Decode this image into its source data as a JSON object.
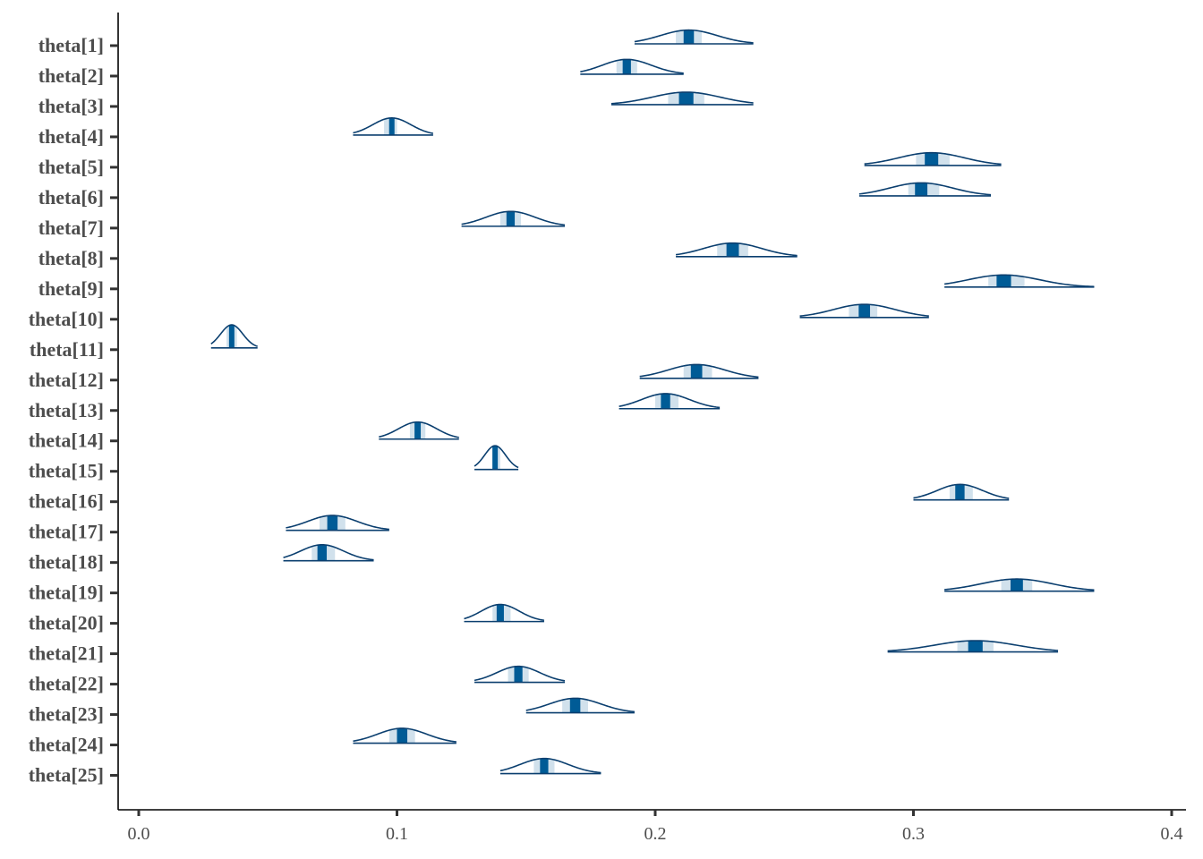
{
  "chart_data": {
    "type": "ridgeline",
    "xlim": [
      -0.008,
      0.405
    ],
    "x_ticks": [
      0.0,
      0.1,
      0.2,
      0.3,
      0.4
    ],
    "x_tick_labels": [
      "0.0",
      "0.1",
      "0.2",
      "0.3",
      "0.4"
    ],
    "grid": false,
    "parameters": [
      {
        "label": "theta[1]",
        "median": 0.213,
        "inner": [
          0.208,
          0.218
        ],
        "outer": [
          0.192,
          0.238
        ]
      },
      {
        "label": "theta[2]",
        "median": 0.189,
        "inner": [
          0.185,
          0.193
        ],
        "outer": [
          0.171,
          0.211
        ]
      },
      {
        "label": "theta[3]",
        "median": 0.212,
        "inner": [
          0.205,
          0.219
        ],
        "outer": [
          0.183,
          0.238
        ]
      },
      {
        "label": "theta[4]",
        "median": 0.098,
        "inner": [
          0.095,
          0.1
        ],
        "outer": [
          0.083,
          0.114
        ]
      },
      {
        "label": "theta[5]",
        "median": 0.307,
        "inner": [
          0.301,
          0.314
        ],
        "outer": [
          0.281,
          0.334
        ]
      },
      {
        "label": "theta[6]",
        "median": 0.303,
        "inner": [
          0.298,
          0.31
        ],
        "outer": [
          0.279,
          0.33
        ]
      },
      {
        "label": "theta[7]",
        "median": 0.144,
        "inner": [
          0.14,
          0.148
        ],
        "outer": [
          0.125,
          0.165
        ]
      },
      {
        "label": "theta[8]",
        "median": 0.23,
        "inner": [
          0.224,
          0.236
        ],
        "outer": [
          0.208,
          0.255
        ]
      },
      {
        "label": "theta[9]",
        "median": 0.335,
        "inner": [
          0.329,
          0.343
        ],
        "outer": [
          0.312,
          0.37
        ]
      },
      {
        "label": "theta[10]",
        "median": 0.281,
        "inner": [
          0.275,
          0.286
        ],
        "outer": [
          0.256,
          0.306
        ]
      },
      {
        "label": "theta[11]",
        "median": 0.036,
        "inner": [
          0.034,
          0.038
        ],
        "outer": [
          0.028,
          0.046
        ]
      },
      {
        "label": "theta[12]",
        "median": 0.216,
        "inner": [
          0.211,
          0.222
        ],
        "outer": [
          0.194,
          0.24
        ]
      },
      {
        "label": "theta[13]",
        "median": 0.204,
        "inner": [
          0.2,
          0.209
        ],
        "outer": [
          0.186,
          0.225
        ]
      },
      {
        "label": "theta[14]",
        "median": 0.108,
        "inner": [
          0.105,
          0.111
        ],
        "outer": [
          0.093,
          0.124
        ]
      },
      {
        "label": "theta[15]",
        "median": 0.138,
        "inner": [
          0.137,
          0.14
        ],
        "outer": [
          0.13,
          0.147
        ]
      },
      {
        "label": "theta[16]",
        "median": 0.318,
        "inner": [
          0.314,
          0.323
        ],
        "outer": [
          0.3,
          0.337
        ]
      },
      {
        "label": "theta[17]",
        "median": 0.075,
        "inner": [
          0.07,
          0.08
        ],
        "outer": [
          0.057,
          0.097
        ]
      },
      {
        "label": "theta[18]",
        "median": 0.071,
        "inner": [
          0.067,
          0.076
        ],
        "outer": [
          0.056,
          0.091
        ]
      },
      {
        "label": "theta[19]",
        "median": 0.34,
        "inner": [
          0.334,
          0.346
        ],
        "outer": [
          0.312,
          0.37
        ]
      },
      {
        "label": "theta[20]",
        "median": 0.14,
        "inner": [
          0.137,
          0.144
        ],
        "outer": [
          0.126,
          0.157
        ]
      },
      {
        "label": "theta[21]",
        "median": 0.324,
        "inner": [
          0.317,
          0.331
        ],
        "outer": [
          0.29,
          0.356
        ]
      },
      {
        "label": "theta[22]",
        "median": 0.147,
        "inner": [
          0.143,
          0.151
        ],
        "outer": [
          0.13,
          0.165
        ]
      },
      {
        "label": "theta[23]",
        "median": 0.169,
        "inner": [
          0.164,
          0.174
        ],
        "outer": [
          0.15,
          0.192
        ]
      },
      {
        "label": "theta[24]",
        "median": 0.102,
        "inner": [
          0.097,
          0.107
        ],
        "outer": [
          0.083,
          0.123
        ]
      },
      {
        "label": "theta[25]",
        "median": 0.157,
        "inner": [
          0.153,
          0.161
        ],
        "outer": [
          0.14,
          0.179
        ]
      }
    ],
    "colors": {
      "curve": "#0b3f6f",
      "band": "#d1e1ec",
      "median": "#005b96"
    }
  }
}
